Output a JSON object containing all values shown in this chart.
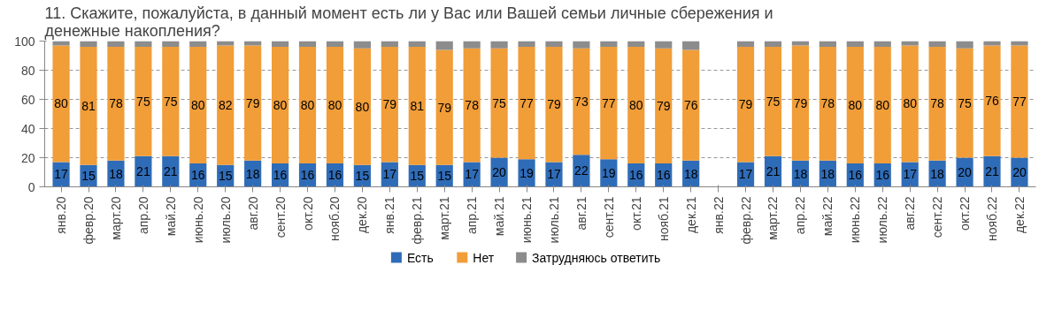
{
  "chart_data": {
    "type": "bar",
    "stacked": true,
    "title": "11. Скажите, пожалуйста, в данный момент есть ли у Вас или Вашей семьи личные сбережения и денежные накопления?",
    "categories": [
      "янв.20",
      "февр.20",
      "март.20",
      "апр.20",
      "май.20",
      "июнь.20",
      "июль.20",
      "авг.20",
      "сент.20",
      "окт.20",
      "нояб.20",
      "дек.20",
      "янв.21",
      "февр.21",
      "март.21",
      "апр.21",
      "май.21",
      "июнь.21",
      "июль.21",
      "авг.21",
      "сент.21",
      "окт.21",
      "нояб.21",
      "дек.21",
      "янв.22",
      "февр.22",
      "март.22",
      "апр.22",
      "май.22",
      "июнь.22",
      "июль.22",
      "авг.22",
      "сент.22",
      "окт.22",
      "нояб.22",
      "дек.22"
    ],
    "series": [
      {
        "name": "Есть",
        "color": "#2f6cb8",
        "values": [
          17,
          15,
          18,
          21,
          21,
          16,
          15,
          18,
          16,
          16,
          16,
          15,
          17,
          15,
          15,
          17,
          20,
          19,
          17,
          22,
          19,
          16,
          16,
          18,
          null,
          17,
          21,
          18,
          18,
          16,
          16,
          17,
          18,
          20,
          21,
          20
        ],
        "value_labels": [
          "17",
          "15",
          "18",
          "21",
          "21",
          "16",
          "15",
          "18",
          "16",
          "16",
          "16",
          "15",
          "17",
          "15",
          "15",
          "17",
          "20",
          "19",
          "17",
          "22",
          "19",
          "16",
          "16",
          "18",
          null,
          "17",
          "21",
          "18",
          "18",
          "16",
          "16",
          "17",
          "18",
          "20",
          "21",
          "20"
        ]
      },
      {
        "name": "Нет",
        "color": "#f19d38",
        "values": [
          80,
          81,
          78,
          75,
          75,
          80,
          82,
          79,
          80,
          80,
          80,
          80,
          79,
          81,
          79,
          78,
          75,
          77,
          79,
          73,
          77,
          80,
          79,
          76,
          null,
          79,
          75,
          79,
          78,
          80,
          80,
          80,
          78,
          75,
          76,
          77
        ],
        "value_labels": [
          "80",
          "81",
          "78",
          "75",
          "75",
          "80",
          "82",
          "79",
          "80",
          "80",
          "80",
          "80",
          "79",
          "81",
          "79",
          "78",
          "75",
          "77",
          "79",
          "73",
          "77",
          "80",
          "79",
          "76",
          null,
          "79",
          "75",
          "79",
          "78",
          "80",
          "80",
          "80",
          "78",
          "75",
          "76",
          "77"
        ]
      },
      {
        "name": "Затрудняюсь ответить",
        "color": "#8c8c8c",
        "values": [
          3,
          4,
          4,
          4,
          4,
          4,
          3,
          3,
          4,
          4,
          4,
          5,
          4,
          4,
          6,
          5,
          5,
          4,
          4,
          5,
          4,
          4,
          5,
          6,
          null,
          4,
          4,
          3,
          4,
          4,
          4,
          3,
          4,
          5,
          3,
          3
        ]
      }
    ],
    "ylim": [
      0,
      100
    ],
    "yticks": [
      0,
      20,
      40,
      60,
      80,
      100
    ],
    "grid": "y",
    "legend": "bottom"
  }
}
